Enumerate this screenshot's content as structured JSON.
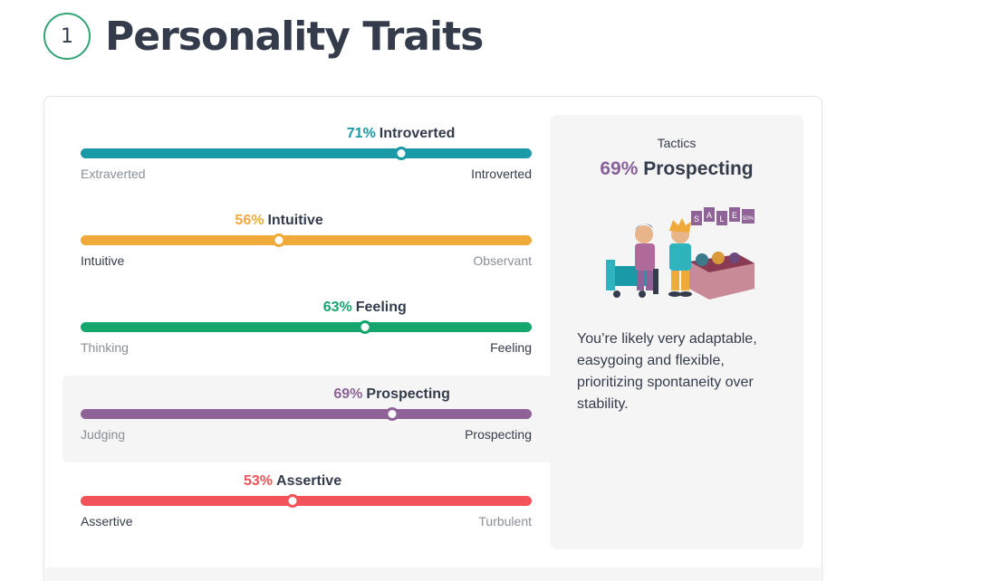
{
  "header": {
    "number": "1",
    "title": "Personality Traits"
  },
  "colors": {
    "energy": "#4298b4",
    "mind": "#e4ae3a",
    "nature": "#33a474",
    "tactics": "#88619a",
    "identity": "#f25e62"
  },
  "traits": [
    {
      "pct": "71%",
      "label": "Introverted",
      "value": 71,
      "left": "Extraverted",
      "right": "Introverted",
      "strong_side": "right",
      "color": "#1a9aa6"
    },
    {
      "pct": "56%",
      "label": "Intuitive",
      "value": 44,
      "left": "Intuitive",
      "right": "Observant",
      "strong_side": "left",
      "color": "#f0aa3a"
    },
    {
      "pct": "63%",
      "label": "Feeling",
      "value": 63,
      "left": "Thinking",
      "right": "Feeling",
      "strong_side": "right",
      "color": "#15a66e"
    },
    {
      "pct": "69%",
      "label": "Prospecting",
      "value": 69,
      "left": "Judging",
      "right": "Prospecting",
      "strong_side": "right",
      "color": "#8f6398"
    },
    {
      "pct": "53%",
      "label": "Assertive",
      "value": 47,
      "left": "Assertive",
      "right": "Turbulent",
      "strong_side": "left",
      "color": "#f25258"
    }
  ],
  "panel": {
    "category": "Tactics",
    "pct": "69%",
    "trait": "Prospecting",
    "description": "You’re likely very adaptable, easygoing and flexible, prioritizing spontaneity over stability.",
    "illustration": "shopping-sale-illustration",
    "sale_tags": [
      "S",
      "A",
      "L",
      "E",
      "50%"
    ]
  }
}
